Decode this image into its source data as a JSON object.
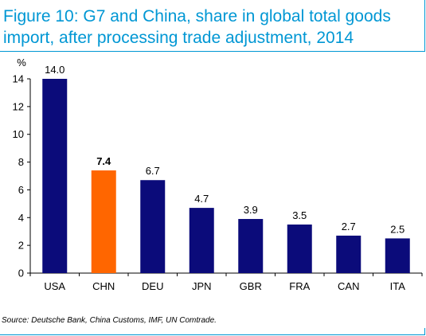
{
  "title": "Figure 10: G7 and China, share in global total goods import, after processing trade adjustment, 2014",
  "source": "Source: Deutsche Bank, China Customs, IMF, UN Comtrade.",
  "colors": {
    "title": "#0097d4",
    "bar": "#0b0b7a",
    "highlight": "#ff6600"
  },
  "chart_data": {
    "type": "bar",
    "ylabel": "%",
    "ylim": [
      0,
      14
    ],
    "yticks": [
      0,
      2,
      4,
      6,
      8,
      10,
      12,
      14
    ],
    "categories": [
      "USA",
      "CHN",
      "DEU",
      "JPN",
      "GBR",
      "FRA",
      "CAN",
      "ITA"
    ],
    "values": [
      14.0,
      7.4,
      6.7,
      4.7,
      3.9,
      3.5,
      2.7,
      2.5
    ],
    "value_labels": [
      "14.0",
      "7.4",
      "6.7",
      "4.7",
      "3.9",
      "3.5",
      "2.7",
      "2.5"
    ],
    "highlight_index": 1,
    "grid": false
  }
}
